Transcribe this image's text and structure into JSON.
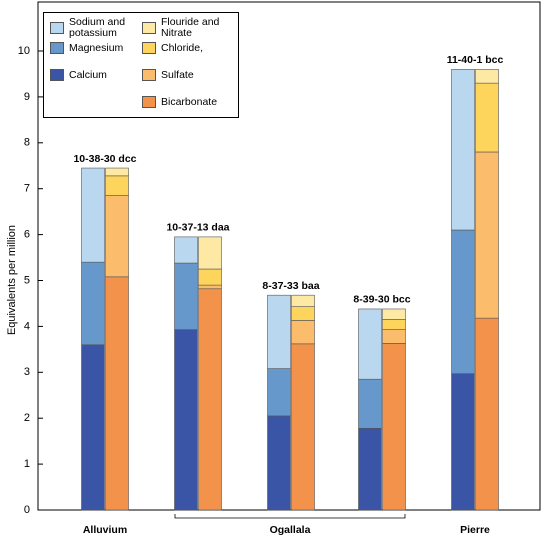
{
  "chart_data": {
    "type": "stacked_bar",
    "y_label": "Equivalents per million",
    "ylim": [
      0,
      11
    ],
    "yticks": [
      0,
      1,
      2,
      3,
      4,
      5,
      6,
      7,
      8,
      9,
      10
    ],
    "categories": [
      "10-38-30 dcc",
      "10-37-13 daa",
      "8-37-33 baa",
      "8-39-30 bcc",
      "11-40-1 bcc"
    ],
    "x_groups": [
      {
        "label": "Alluvium",
        "members": [
          "10-38-30 dcc"
        ]
      },
      {
        "label": "Ogallala",
        "members": [
          "10-37-13 daa",
          "8-37-33 baa",
          "8-39-30 bcc"
        ]
      },
      {
        "label": "Pierre",
        "members": [
          "11-40-1 bcc"
        ]
      }
    ],
    "series": [
      {
        "name": "Calcium",
        "stack": "cations",
        "color": "#3a55a6",
        "values": [
          3.6,
          3.93,
          2.05,
          1.78,
          2.97
        ]
      },
      {
        "name": "Magnesium",
        "stack": "cations",
        "color": "#6698cc",
        "values": [
          1.8,
          1.45,
          1.03,
          1.07,
          3.13
        ]
      },
      {
        "name": "Sodium and potassium",
        "stack": "cations",
        "color": "#b9d8f0",
        "values": [
          2.05,
          0.57,
          1.6,
          1.53,
          3.5
        ]
      },
      {
        "name": "Bicarbonate",
        "stack": "anions",
        "color": "#f3924b",
        "values": [
          5.08,
          4.82,
          3.62,
          3.63,
          4.18
        ]
      },
      {
        "name": "Sulfate",
        "stack": "anions",
        "color": "#fbbc6c",
        "values": [
          1.77,
          0.08,
          0.51,
          0.3,
          3.62
        ]
      },
      {
        "name": "Chloride,",
        "stack": "anions",
        "color": "#fdd55c",
        "values": [
          0.43,
          0.35,
          0.3,
          0.22,
          1.5
        ]
      },
      {
        "name": "Flouride and Nitrate",
        "stack": "anions",
        "color": "#fde9a4",
        "values": [
          0.17,
          0.7,
          0.25,
          0.23,
          0.3
        ]
      }
    ]
  }
}
